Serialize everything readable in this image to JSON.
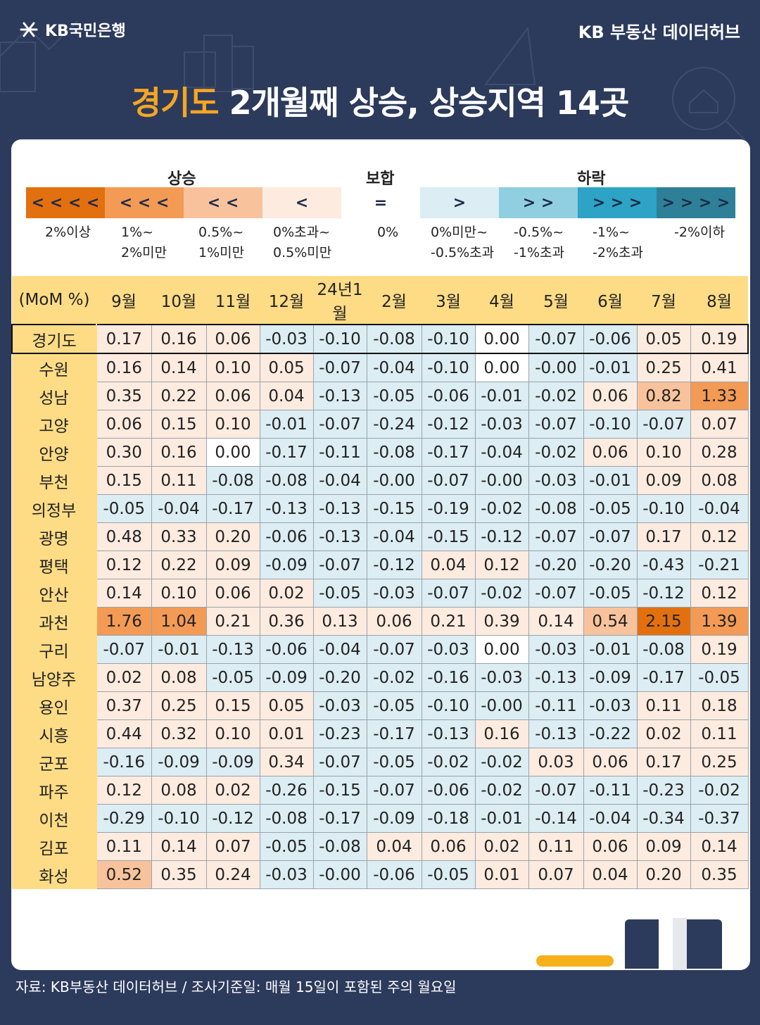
{
  "header": {
    "logo_text": "KB국민은행",
    "brand": "KB 부동산 데이터허브"
  },
  "title": {
    "highlight": "경기도",
    "rest": " 2개월째 상승, 상승지역 14곳"
  },
  "legend": {
    "heads": {
      "up": "상승",
      "flat": "보합",
      "down": "하락"
    },
    "items": [
      {
        "symbol": "< < < <",
        "label": "2%이상",
        "color": "#e2700f"
      },
      {
        "symbol": "< < <",
        "label": "1%~\n2%미만",
        "color": "#f39a55"
      },
      {
        "symbol": "< <",
        "label": "0.5%~\n1%미만",
        "color": "#f8c39c"
      },
      {
        "symbol": "<",
        "label": "0%초과~\n0.5%미만",
        "color": "#fdebdf"
      },
      {
        "symbol": "=",
        "label": "0%",
        "color": "#ffffff"
      },
      {
        "symbol": ">",
        "label": "0%미만~\n-0.5%초과",
        "color": "#dcedf3"
      },
      {
        "symbol": "> >",
        "label": "-0.5%~\n-1%초과",
        "color": "#8fcfe0"
      },
      {
        "symbol": "> > >",
        "label": "-1%~\n-2%초과",
        "color": "#2da3c5"
      },
      {
        "symbol": "> > > >",
        "label": "-2%이하",
        "color": "#2d8098"
      }
    ]
  },
  "chart_data": {
    "type": "table",
    "title": "경기도 2개월째 상승, 상승지역 14곳",
    "unit_label": "(MoM %)",
    "columns": [
      "9월",
      "10월",
      "11월",
      "12월",
      "24년1월",
      "2월",
      "3월",
      "4월",
      "5월",
      "6월",
      "7월",
      "8월"
    ],
    "rows": [
      {
        "region": "경기도",
        "values": [
          "0.17",
          "0.16",
          "0.06",
          "-0.03",
          "-0.10",
          "-0.08",
          "-0.10",
          "0.00",
          "-0.07",
          "-0.06",
          "0.05",
          "0.19"
        ]
      },
      {
        "region": "수원",
        "values": [
          "0.16",
          "0.14",
          "0.10",
          "0.05",
          "-0.07",
          "-0.04",
          "-0.10",
          "0.00",
          "-0.00",
          "-0.01",
          "0.25",
          "0.41"
        ]
      },
      {
        "region": "성남",
        "values": [
          "0.35",
          "0.22",
          "0.06",
          "0.04",
          "-0.13",
          "-0.05",
          "-0.06",
          "-0.01",
          "-0.02",
          "0.06",
          "0.82",
          "1.33"
        ]
      },
      {
        "region": "고양",
        "values": [
          "0.06",
          "0.15",
          "0.10",
          "-0.01",
          "-0.07",
          "-0.24",
          "-0.12",
          "-0.03",
          "-0.07",
          "-0.10",
          "-0.07",
          "0.07"
        ]
      },
      {
        "region": "안양",
        "values": [
          "0.30",
          "0.16",
          "0.00",
          "-0.17",
          "-0.11",
          "-0.08",
          "-0.17",
          "-0.04",
          "-0.02",
          "0.06",
          "0.10",
          "0.28"
        ]
      },
      {
        "region": "부천",
        "values": [
          "0.15",
          "0.11",
          "-0.08",
          "-0.08",
          "-0.04",
          "-0.00",
          "-0.07",
          "-0.00",
          "-0.03",
          "-0.01",
          "0.09",
          "0.08"
        ]
      },
      {
        "region": "의정부",
        "values": [
          "-0.05",
          "-0.04",
          "-0.17",
          "-0.13",
          "-0.13",
          "-0.15",
          "-0.19",
          "-0.02",
          "-0.08",
          "-0.05",
          "-0.10",
          "-0.04"
        ]
      },
      {
        "region": "광명",
        "values": [
          "0.48",
          "0.33",
          "0.20",
          "-0.06",
          "-0.13",
          "-0.04",
          "-0.15",
          "-0.12",
          "-0.07",
          "-0.07",
          "0.17",
          "0.12"
        ]
      },
      {
        "region": "평택",
        "values": [
          "0.12",
          "0.22",
          "0.09",
          "-0.09",
          "-0.07",
          "-0.12",
          "0.04",
          "0.12",
          "-0.20",
          "-0.20",
          "-0.43",
          "-0.21"
        ]
      },
      {
        "region": "안산",
        "values": [
          "0.14",
          "0.10",
          "0.06",
          "0.02",
          "-0.05",
          "-0.03",
          "-0.07",
          "-0.02",
          "-0.07",
          "-0.05",
          "-0.12",
          "0.12"
        ]
      },
      {
        "region": "과천",
        "values": [
          "1.76",
          "1.04",
          "0.21",
          "0.36",
          "0.13",
          "0.06",
          "0.21",
          "0.39",
          "0.14",
          "0.54",
          "2.15",
          "1.39"
        ]
      },
      {
        "region": "구리",
        "values": [
          "-0.07",
          "-0.01",
          "-0.13",
          "-0.06",
          "-0.04",
          "-0.07",
          "-0.03",
          "0.00",
          "-0.03",
          "-0.01",
          "-0.08",
          "0.19"
        ]
      },
      {
        "region": "남양주",
        "values": [
          "0.02",
          "0.08",
          "-0.05",
          "-0.09",
          "-0.20",
          "-0.02",
          "-0.16",
          "-0.03",
          "-0.13",
          "-0.09",
          "-0.17",
          "-0.05"
        ]
      },
      {
        "region": "용인",
        "values": [
          "0.37",
          "0.25",
          "0.15",
          "0.05",
          "-0.03",
          "-0.05",
          "-0.10",
          "-0.00",
          "-0.11",
          "-0.03",
          "0.11",
          "0.18"
        ]
      },
      {
        "region": "시흥",
        "values": [
          "0.44",
          "0.32",
          "0.10",
          "0.01",
          "-0.23",
          "-0.17",
          "-0.13",
          "0.16",
          "-0.13",
          "-0.22",
          "0.02",
          "0.11"
        ]
      },
      {
        "region": "군포",
        "values": [
          "-0.16",
          "-0.09",
          "-0.09",
          "0.34",
          "-0.07",
          "-0.05",
          "-0.02",
          "-0.02",
          "0.03",
          "0.06",
          "0.17",
          "0.25"
        ]
      },
      {
        "region": "파주",
        "values": [
          "0.12",
          "0.08",
          "0.02",
          "-0.26",
          "-0.15",
          "-0.07",
          "-0.06",
          "-0.02",
          "-0.07",
          "-0.11",
          "-0.23",
          "-0.02"
        ]
      },
      {
        "region": "이천",
        "values": [
          "-0.29",
          "-0.10",
          "-0.12",
          "-0.08",
          "-0.17",
          "-0.09",
          "-0.18",
          "-0.01",
          "-0.14",
          "-0.04",
          "-0.34",
          "-0.37"
        ]
      },
      {
        "region": "김포",
        "values": [
          "0.11",
          "0.14",
          "0.07",
          "-0.05",
          "-0.08",
          "0.04",
          "0.06",
          "0.02",
          "0.11",
          "0.06",
          "0.09",
          "0.14"
        ]
      },
      {
        "region": "화성",
        "values": [
          "0.52",
          "0.35",
          "0.24",
          "-0.03",
          "-0.00",
          "-0.06",
          "-0.05",
          "0.01",
          "0.07",
          "0.04",
          "0.20",
          "0.35"
        ]
      }
    ]
  },
  "footer": "자료: KB부동산 데이터허브 / 조사기준일: 매월 15일이 포함된 주의 월요일"
}
